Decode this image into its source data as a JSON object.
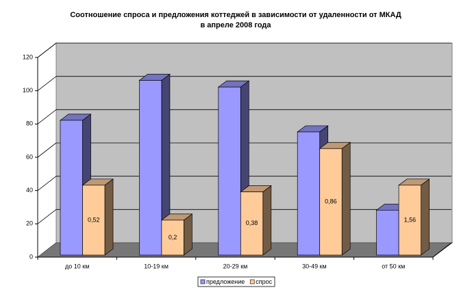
{
  "chart_data": {
    "type": "bar3d",
    "title": "Соотношение спроса и предложения коттеджей в зависимости от удаленности от МКАД",
    "subtitle": "в апреле 2008 года",
    "categories": [
      "до 10 км",
      "10-19 км",
      "20-29 км",
      "30-49 км",
      "от 50 км"
    ],
    "series": [
      {
        "name": "предложение",
        "color": "#9999ff",
        "values": [
          81,
          105,
          101,
          74,
          27
        ]
      },
      {
        "name": "спрос",
        "color": "#ffcc99",
        "values": [
          42,
          21,
          38,
          64,
          42
        ]
      }
    ],
    "annotations": [
      "0,52",
      "0,2",
      "0,38",
      "0,86",
      "1,56"
    ],
    "ylim": [
      0,
      120
    ],
    "yticks": [
      0,
      20,
      40,
      60,
      80,
      100,
      120
    ],
    "grid": true,
    "legend": "bottom"
  }
}
